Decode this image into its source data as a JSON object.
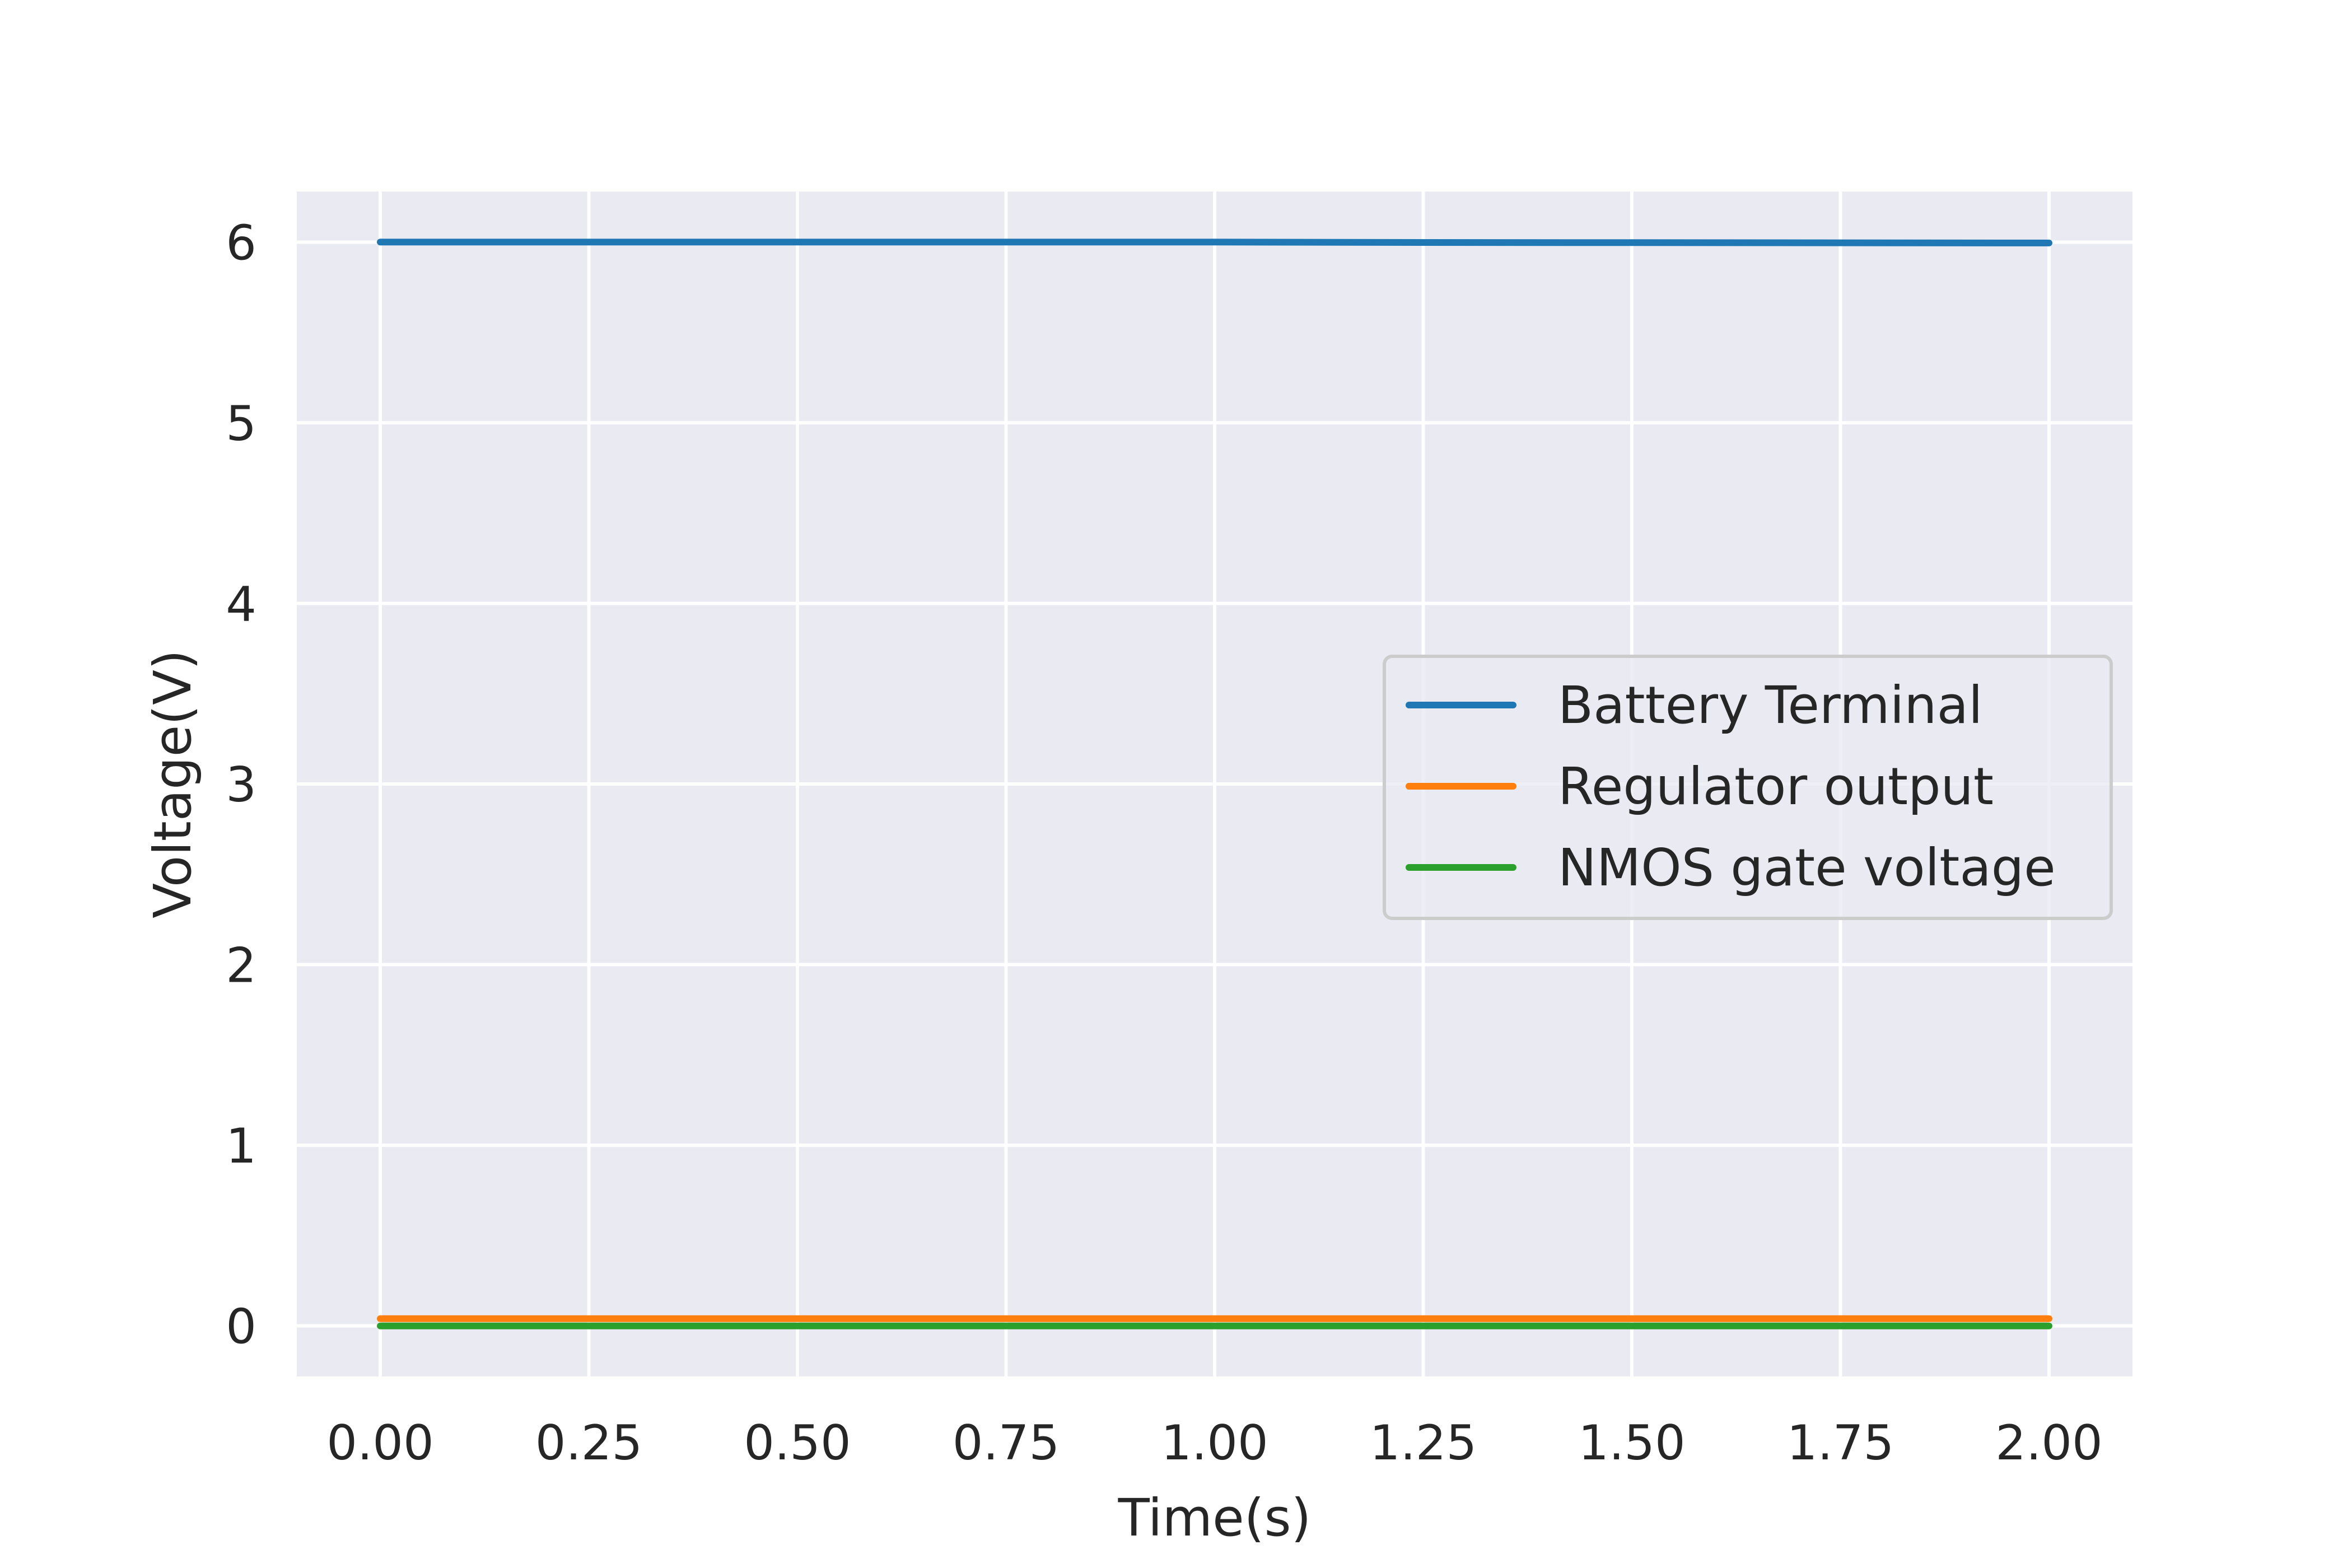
{
  "chart_data": {
    "type": "line",
    "xlabel": "Time(s)",
    "ylabel": "Voltage(V)",
    "xlim": [
      -0.1,
      2.1
    ],
    "ylim": [
      -0.28,
      6.28
    ],
    "xticks": [
      0.0,
      0.25,
      0.5,
      0.75,
      1.0,
      1.25,
      1.5,
      1.75,
      2.0
    ],
    "xtick_labels": [
      "0.00",
      "0.25",
      "0.50",
      "0.75",
      "1.00",
      "1.25",
      "1.50",
      "1.75",
      "2.00"
    ],
    "yticks": [
      0,
      1,
      2,
      3,
      4,
      5,
      6
    ],
    "ytick_labels": [
      "0",
      "1",
      "2",
      "3",
      "4",
      "5",
      "6"
    ],
    "grid": true,
    "legend_position": "center-right",
    "background_color": "#eaeaf2",
    "series": [
      {
        "name": "Battery Terminal",
        "color": "#1f77b4",
        "x": [
          0.0,
          0.25,
          0.5,
          0.75,
          1.0,
          1.25,
          1.5,
          1.75,
          2.0
        ],
        "y": [
          6.0,
          6.0,
          6.0,
          6.0,
          6.0,
          5.998,
          5.997,
          5.996,
          5.995
        ]
      },
      {
        "name": "Regulator output",
        "color": "#ff7f0e",
        "x": [
          0.0,
          2.0
        ],
        "y": [
          0.04,
          0.04
        ]
      },
      {
        "name": "NMOS gate voltage",
        "color": "#2ca02c",
        "x": [
          0.0,
          2.0
        ],
        "y": [
          0.0,
          0.0
        ]
      }
    ]
  }
}
